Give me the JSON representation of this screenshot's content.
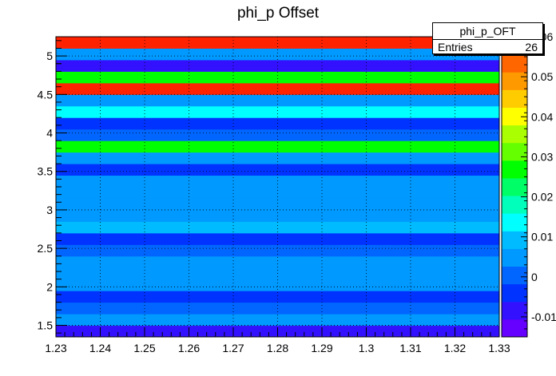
{
  "chart_data": {
    "type": "heatmap",
    "title": "phi_p Offset",
    "xlabel": "",
    "ylabel": "",
    "xlim": [
      1.23,
      1.33
    ],
    "ylim": [
      1.35,
      5.25
    ],
    "zlim": [
      -0.015,
      0.06
    ],
    "x_ticks": [
      "1.23",
      "1.24",
      "1.25",
      "1.26",
      "1.27",
      "1.28",
      "1.29",
      "1.3",
      "1.31",
      "1.32",
      "1.33"
    ],
    "x_tick_values": [
      1.23,
      1.24,
      1.25,
      1.26,
      1.27,
      1.28,
      1.29,
      1.3,
      1.31,
      1.32,
      1.33
    ],
    "y_ticks": [
      "1.5",
      "2",
      "2.5",
      "3",
      "3.5",
      "4",
      "4.5",
      "5"
    ],
    "y_tick_values": [
      1.5,
      2,
      2.5,
      3,
      3.5,
      4,
      4.5,
      5
    ],
    "z_ticks": [
      "-0.01",
      "0",
      "0.01",
      "0.02",
      "0.03",
      "0.04",
      "0.05",
      "0.06"
    ],
    "z_tick_values": [
      -0.01,
      0,
      0.01,
      0.02,
      0.03,
      0.04,
      0.05,
      0.06
    ],
    "palette": [
      "#6600ff",
      "#3311ff",
      "#0033ff",
      "#0066ff",
      "#0099ff",
      "#00bbff",
      "#00ffff",
      "#00ffbb",
      "#00ff66",
      "#00ff00",
      "#66ff00",
      "#aaff00",
      "#ffff00",
      "#ffcc00",
      "#ff9900",
      "#ff6600",
      "#ff2200"
    ],
    "grid": true,
    "rows": [
      {
        "y0": 1.35,
        "y1": 1.5,
        "z": -0.007
      },
      {
        "y0": 1.5,
        "y1": 1.65,
        "z": 0.005
      },
      {
        "y0": 1.65,
        "y1": 1.8,
        "z": 0.001
      },
      {
        "y0": 1.8,
        "y1": 1.95,
        "z": -0.002
      },
      {
        "y0": 1.95,
        "y1": 2.25,
        "z": 0.004
      },
      {
        "y0": 2.25,
        "y1": 2.4,
        "z": 0.003
      },
      {
        "y0": 2.4,
        "y1": 2.55,
        "z": 0.002
      },
      {
        "y0": 2.55,
        "y1": 2.7,
        "z": -0.003
      },
      {
        "y0": 2.7,
        "y1": 2.85,
        "z": 0.011
      },
      {
        "y0": 2.85,
        "y1": 3.0,
        "z": 0.004
      },
      {
        "y0": 3.0,
        "y1": 3.15,
        "z": 0.003
      },
      {
        "y0": 3.15,
        "y1": 3.3,
        "z": 0.007
      },
      {
        "y0": 3.3,
        "y1": 3.45,
        "z": 0.004
      },
      {
        "y0": 3.45,
        "y1": 3.6,
        "z": -0.002
      },
      {
        "y0": 3.6,
        "y1": 3.75,
        "z": 0.004
      },
      {
        "y0": 3.75,
        "y1": 3.9,
        "z": 0.027
      },
      {
        "y0": 3.9,
        "y1": 4.05,
        "z": 0.001
      },
      {
        "y0": 4.05,
        "y1": 4.2,
        "z": -0.003
      },
      {
        "y0": 4.2,
        "y1": 4.35,
        "z": 0.012
      },
      {
        "y0": 4.35,
        "y1": 4.5,
        "z": 0.003
      },
      {
        "y0": 4.5,
        "y1": 4.65,
        "z": 0.058
      },
      {
        "y0": 4.65,
        "y1": 4.8,
        "z": 0.025
      },
      {
        "y0": 4.8,
        "y1": 4.95,
        "z": -0.009
      },
      {
        "y0": 4.95,
        "y1": 5.1,
        "z": 0.004
      },
      {
        "y0": 5.1,
        "y1": 5.25,
        "z": 0.058
      }
    ]
  },
  "stats_box": {
    "name": "phi_p_OFT",
    "entries_label": "Entries",
    "entries_value": "26"
  }
}
